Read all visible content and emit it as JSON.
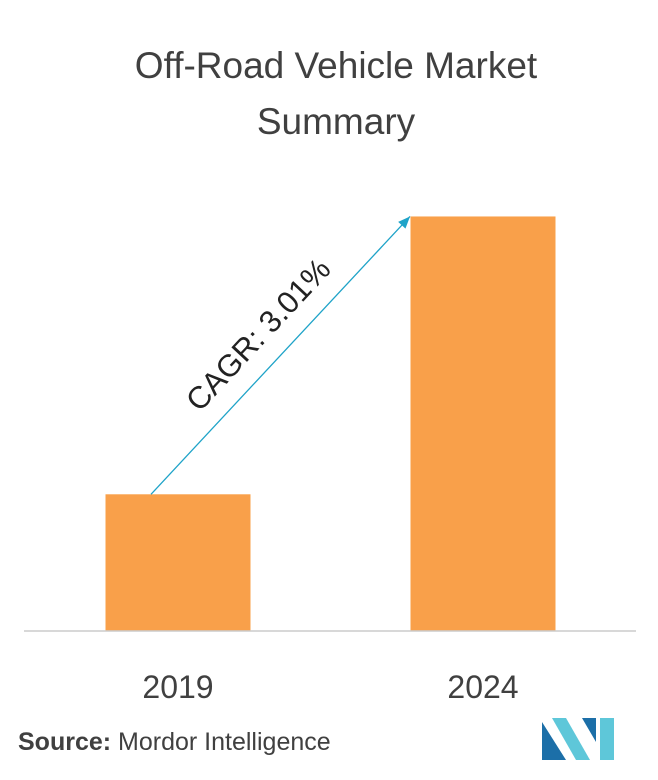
{
  "chart_data": {
    "type": "bar",
    "title_lines": [
      "Off-Road Vehicle Market",
      "Summary"
    ],
    "categories": [
      "2019",
      "2024"
    ],
    "values": [
      31,
      94
    ],
    "ylim": [
      0,
      100
    ],
    "xlabel": "",
    "ylabel": "",
    "grid": false,
    "bar_color": "#f9a04a",
    "annotation": {
      "text": "CAGR: 3.01%",
      "color": "#1ea3c8",
      "from_category": "2019",
      "to_category": "2024"
    }
  },
  "source": {
    "label": "Source:",
    "text": "Mordor Intelligence"
  },
  "logo": {
    "icon": "mordor-intelligence-logo",
    "colors": [
      "#5ec7d9",
      "#1c6fa8"
    ]
  }
}
